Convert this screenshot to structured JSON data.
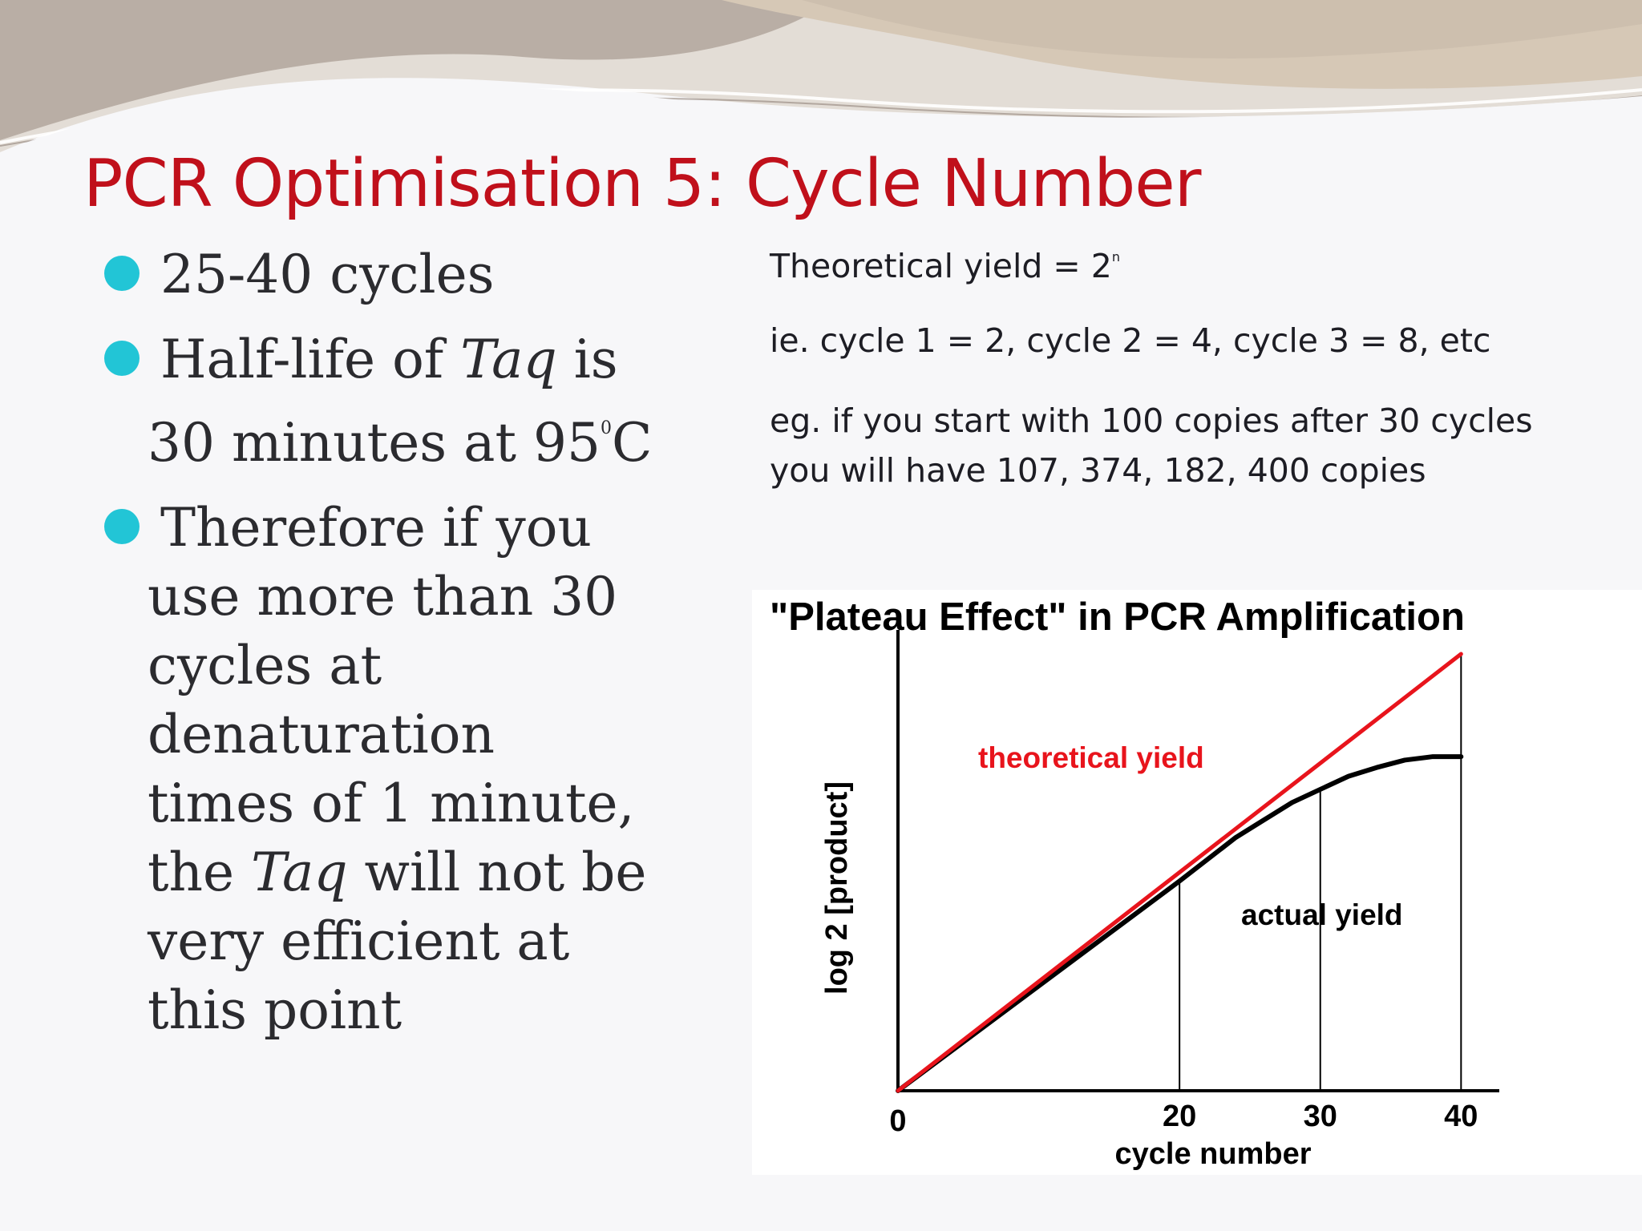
{
  "slide": {
    "title": "PCR Optimisation 5: Cycle Number",
    "bullets": [
      {
        "text": "25-40 cycles"
      },
      {
        "pre": "Half-life of ",
        "italic": "Taq",
        "post": " is",
        "line2a": "30 minutes at 95",
        "sup": "0",
        "line2b": "C"
      },
      {
        "line1": "Therefore if you",
        "line2": "use more than 30",
        "line3": "cycles at",
        "line4": "denaturation",
        "line5": "times of 1 minute,",
        "line6a": "the ",
        "line6i": "Taq",
        "line6b": " will not be",
        "line7": "very efficient at",
        "line8": "this point"
      }
    ],
    "right": {
      "yield_text": "Theoretical yield = 2",
      "yield_sup": "n",
      "example_cycles": "ie. cycle 1 = 2, cycle 2 = 4, cycle 3 = 8, etc",
      "example_line1": "eg. if you start with 100 copies after 30 cycles",
      "example_line2": "you will have 107, 374, 182, 400 copies"
    },
    "colors": {
      "title": "#c0101b",
      "bullet": "#22c5d6",
      "theoretical": "#e8141c",
      "actual": "#000000"
    }
  },
  "chart_data": {
    "type": "line",
    "title": "\"Plateau Effect\" in PCR Amplification",
    "xlabel": "cycle number",
    "ylabel": "log 2 [product]",
    "xlim": [
      0,
      43
    ],
    "ylim": [
      0,
      1
    ],
    "x_ticks": [
      0,
      20,
      30,
      40
    ],
    "x_tick_labels": [
      "0",
      "20",
      "30",
      "40"
    ],
    "vertical_reference_lines": [
      20,
      30,
      40
    ],
    "series": [
      {
        "name": "theoretical yield",
        "color": "#e8141c",
        "x": [
          0,
          40
        ],
        "y": [
          0,
          1.0
        ]
      },
      {
        "name": "actual yield",
        "color": "#000000",
        "x": [
          0,
          10,
          20,
          24,
          26,
          28,
          30,
          32,
          34,
          36,
          38,
          40
        ],
        "y": [
          0,
          0.24,
          0.48,
          0.58,
          0.62,
          0.66,
          0.69,
          0.72,
          0.74,
          0.757,
          0.765,
          0.765
        ]
      }
    ],
    "annotations": [
      {
        "text": "theoretical yield",
        "color": "#e8141c"
      },
      {
        "text": "actual yield",
        "color": "#000000"
      }
    ]
  }
}
